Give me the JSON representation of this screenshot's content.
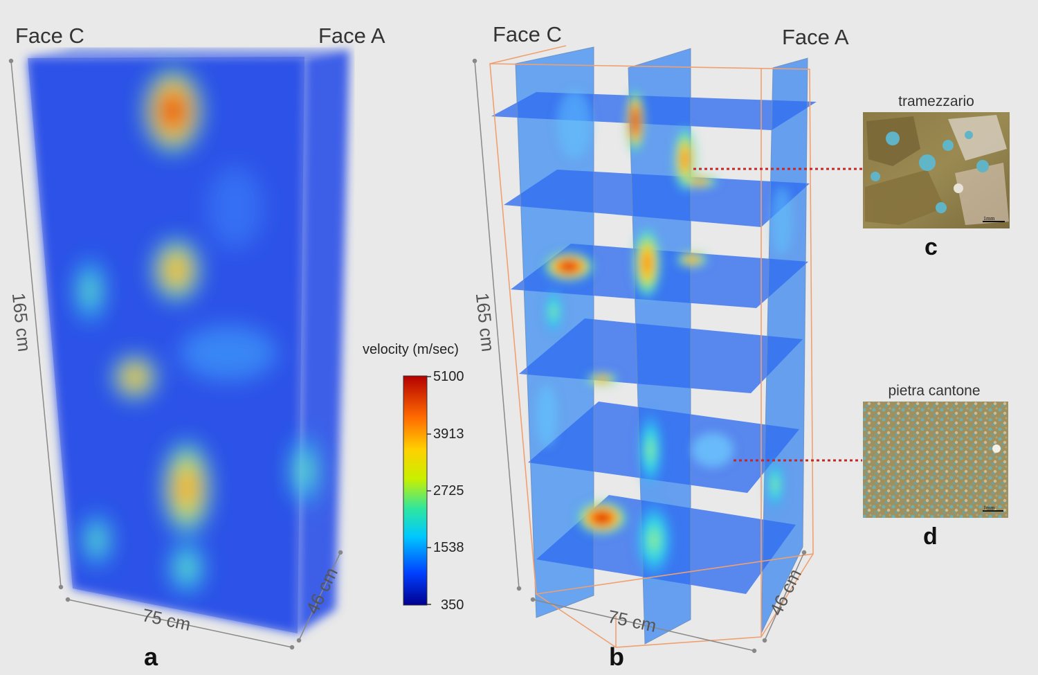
{
  "panel_a": {
    "face_left": "Face C",
    "face_right": "Face A",
    "dim_height": "165 cm",
    "dim_width": "75 cm",
    "dim_depth": "46 cm",
    "panel_label": "a"
  },
  "panel_b": {
    "face_left": "Face C",
    "face_right": "Face A",
    "dim_height": "165 cm",
    "dim_width": "75 cm",
    "dim_depth": "46 cm",
    "panel_label": "b"
  },
  "colorbar": {
    "title": "velocity (m/sec)",
    "ticks": [
      "5100",
      "3913",
      "2725",
      "1538",
      "350"
    ],
    "colors": [
      "#00008f",
      "#0040ff",
      "#00c8ff",
      "#2ee6a0",
      "#c8f000",
      "#ffd000",
      "#ff6a00",
      "#b40000"
    ]
  },
  "thumbnails": [
    {
      "title": "tramezzario",
      "label": "c",
      "scale": "1mm"
    },
    {
      "title": "pietra cantone",
      "label": "d",
      "scale": "1mm"
    }
  ]
}
